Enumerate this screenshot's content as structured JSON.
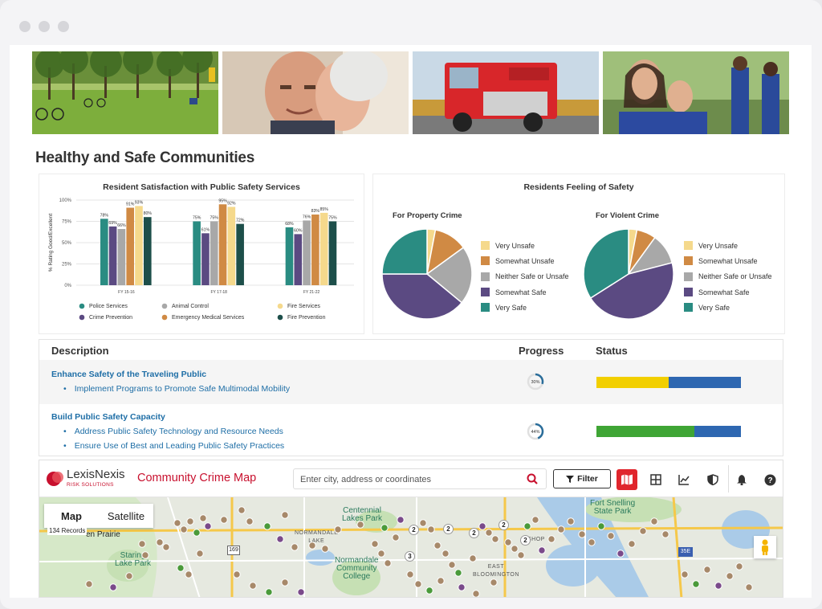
{
  "page": {
    "title": "Healthy and Safe Communities",
    "photos": [
      {
        "name": "park-photo"
      },
      {
        "name": "seniors-photo"
      },
      {
        "name": "fire-truck-photo"
      },
      {
        "name": "family-photo"
      }
    ]
  },
  "bar_chart": {
    "chart_data": {
      "type": "bar",
      "title": "Resident Satisfaction with Public Safety Services",
      "ylabel": "% Rating Good/Excellent",
      "ylim": [
        0,
        100
      ],
      "yticks": [
        "0%",
        "25%",
        "50%",
        "75%",
        "100%"
      ],
      "categories": [
        "FY 15-16",
        "FY 17-18",
        "FY 21-22"
      ],
      "series": [
        {
          "name": "Police Services",
          "color": "#2a8c82",
          "values": [
            78,
            75,
            68
          ],
          "labels": [
            "78%",
            "75%",
            "68%"
          ]
        },
        {
          "name": "Crime Prevention",
          "color": "#5b4a82",
          "values": [
            69,
            61,
            60
          ],
          "labels": [
            "69%",
            "61%",
            "60%"
          ]
        },
        {
          "name": "Animal Control",
          "color": "#a8a8a8",
          "values": [
            66,
            75,
            76
          ],
          "labels": [
            "66%",
            "75%",
            "76%"
          ]
        },
        {
          "name": "Emergency Medical Services",
          "color": "#d08a44",
          "values": [
            91,
            95,
            83
          ],
          "labels": [
            "91%",
            "95%",
            "83%"
          ]
        },
        {
          "name": "Fire Services",
          "color": "#f5d98c",
          "values": [
            93,
            92,
            85
          ],
          "labels": [
            "93%",
            "92%",
            "85%"
          ]
        },
        {
          "name": "Fire Prevention",
          "color": "#1d4f4a",
          "values": [
            80,
            72,
            75
          ],
          "labels": [
            "80%",
            "72%",
            "75%"
          ]
        }
      ],
      "legend": [
        "Police Services",
        "Animal Control",
        "Fire Services",
        "Crime Prevention",
        "Emergency Medical Services",
        "Fire Prevention"
      ]
    }
  },
  "pie_charts": {
    "title": "Residents Feeling of Safety",
    "chart_data": [
      {
        "type": "pie",
        "title": "For Property Crime",
        "labels": [
          "Very Unsafe",
          "Somewhat Unsafe",
          "Neither Safe or Unsafe",
          "Somewhat Safe",
          "Very Safe"
        ],
        "values": [
          3,
          12,
          21,
          39,
          25
        ],
        "colors": [
          "#f5d98c",
          "#d08a44",
          "#a8a8a8",
          "#5b4a82",
          "#2a8c82"
        ]
      },
      {
        "type": "pie",
        "title": "For Violent Crime",
        "labels": [
          "Very Unsafe",
          "Somewhat Unsafe",
          "Neither Safe or Unsafe",
          "Somewhat Safe",
          "Very Safe"
        ],
        "values": [
          3,
          7,
          11,
          45,
          34
        ],
        "colors": [
          "#f5d98c",
          "#d08a44",
          "#a8a8a8",
          "#5b4a82",
          "#2a8c82"
        ]
      }
    ]
  },
  "table": {
    "headers": {
      "description": "Description",
      "progress": "Progress",
      "status": "Status"
    },
    "rows": [
      {
        "goal": "Enhance Safety of the Traveling Public",
        "items": [
          "Implement Programs to Promote Safe Multimodal Mobility"
        ],
        "progress": 30,
        "progress_label": "30%",
        "status": [
          {
            "color": "#f2cf00",
            "pct": 50
          },
          {
            "color": "#2e67b1",
            "pct": 50
          }
        ]
      },
      {
        "goal": "Build Public Safety Capacity",
        "items": [
          "Address Public Safety Technology and Resource Needs",
          "Ensure Use of Best and Leading Public Safety Practices"
        ],
        "progress": 44,
        "progress_label": "44%",
        "status": [
          {
            "color": "#3fa535",
            "pct": 68
          },
          {
            "color": "#2e67b1",
            "pct": 32
          }
        ]
      }
    ]
  },
  "crime_map": {
    "brand_name": "LexisNexis",
    "brand_sub": "RISK SOLUTIONS",
    "app_title": "Community Crime Map",
    "search_placeholder": "Enter city, address or coordinates",
    "filter_label": "Filter",
    "map_tab": "Map",
    "satellite_tab": "Satellite",
    "records": "134 Records",
    "places": {
      "centennial": "Centennial\nLakes Park",
      "fort_snelling": "Fort Snelling\nState Park",
      "staring": "Staring\nLake Park",
      "normandale": "Normandale\nCommunity\nCollege",
      "eden": "en Prairie",
      "normandale_lake": "NORMANDALE\nLAKE",
      "east_bloomington": "EAST\nBLOOMINGTON",
      "shakopee": "SHOP"
    },
    "highway_169": "169",
    "highway_35e": "35E",
    "cluster_counts": [
      "2",
      "2",
      "2",
      "3",
      "2",
      "2"
    ]
  }
}
